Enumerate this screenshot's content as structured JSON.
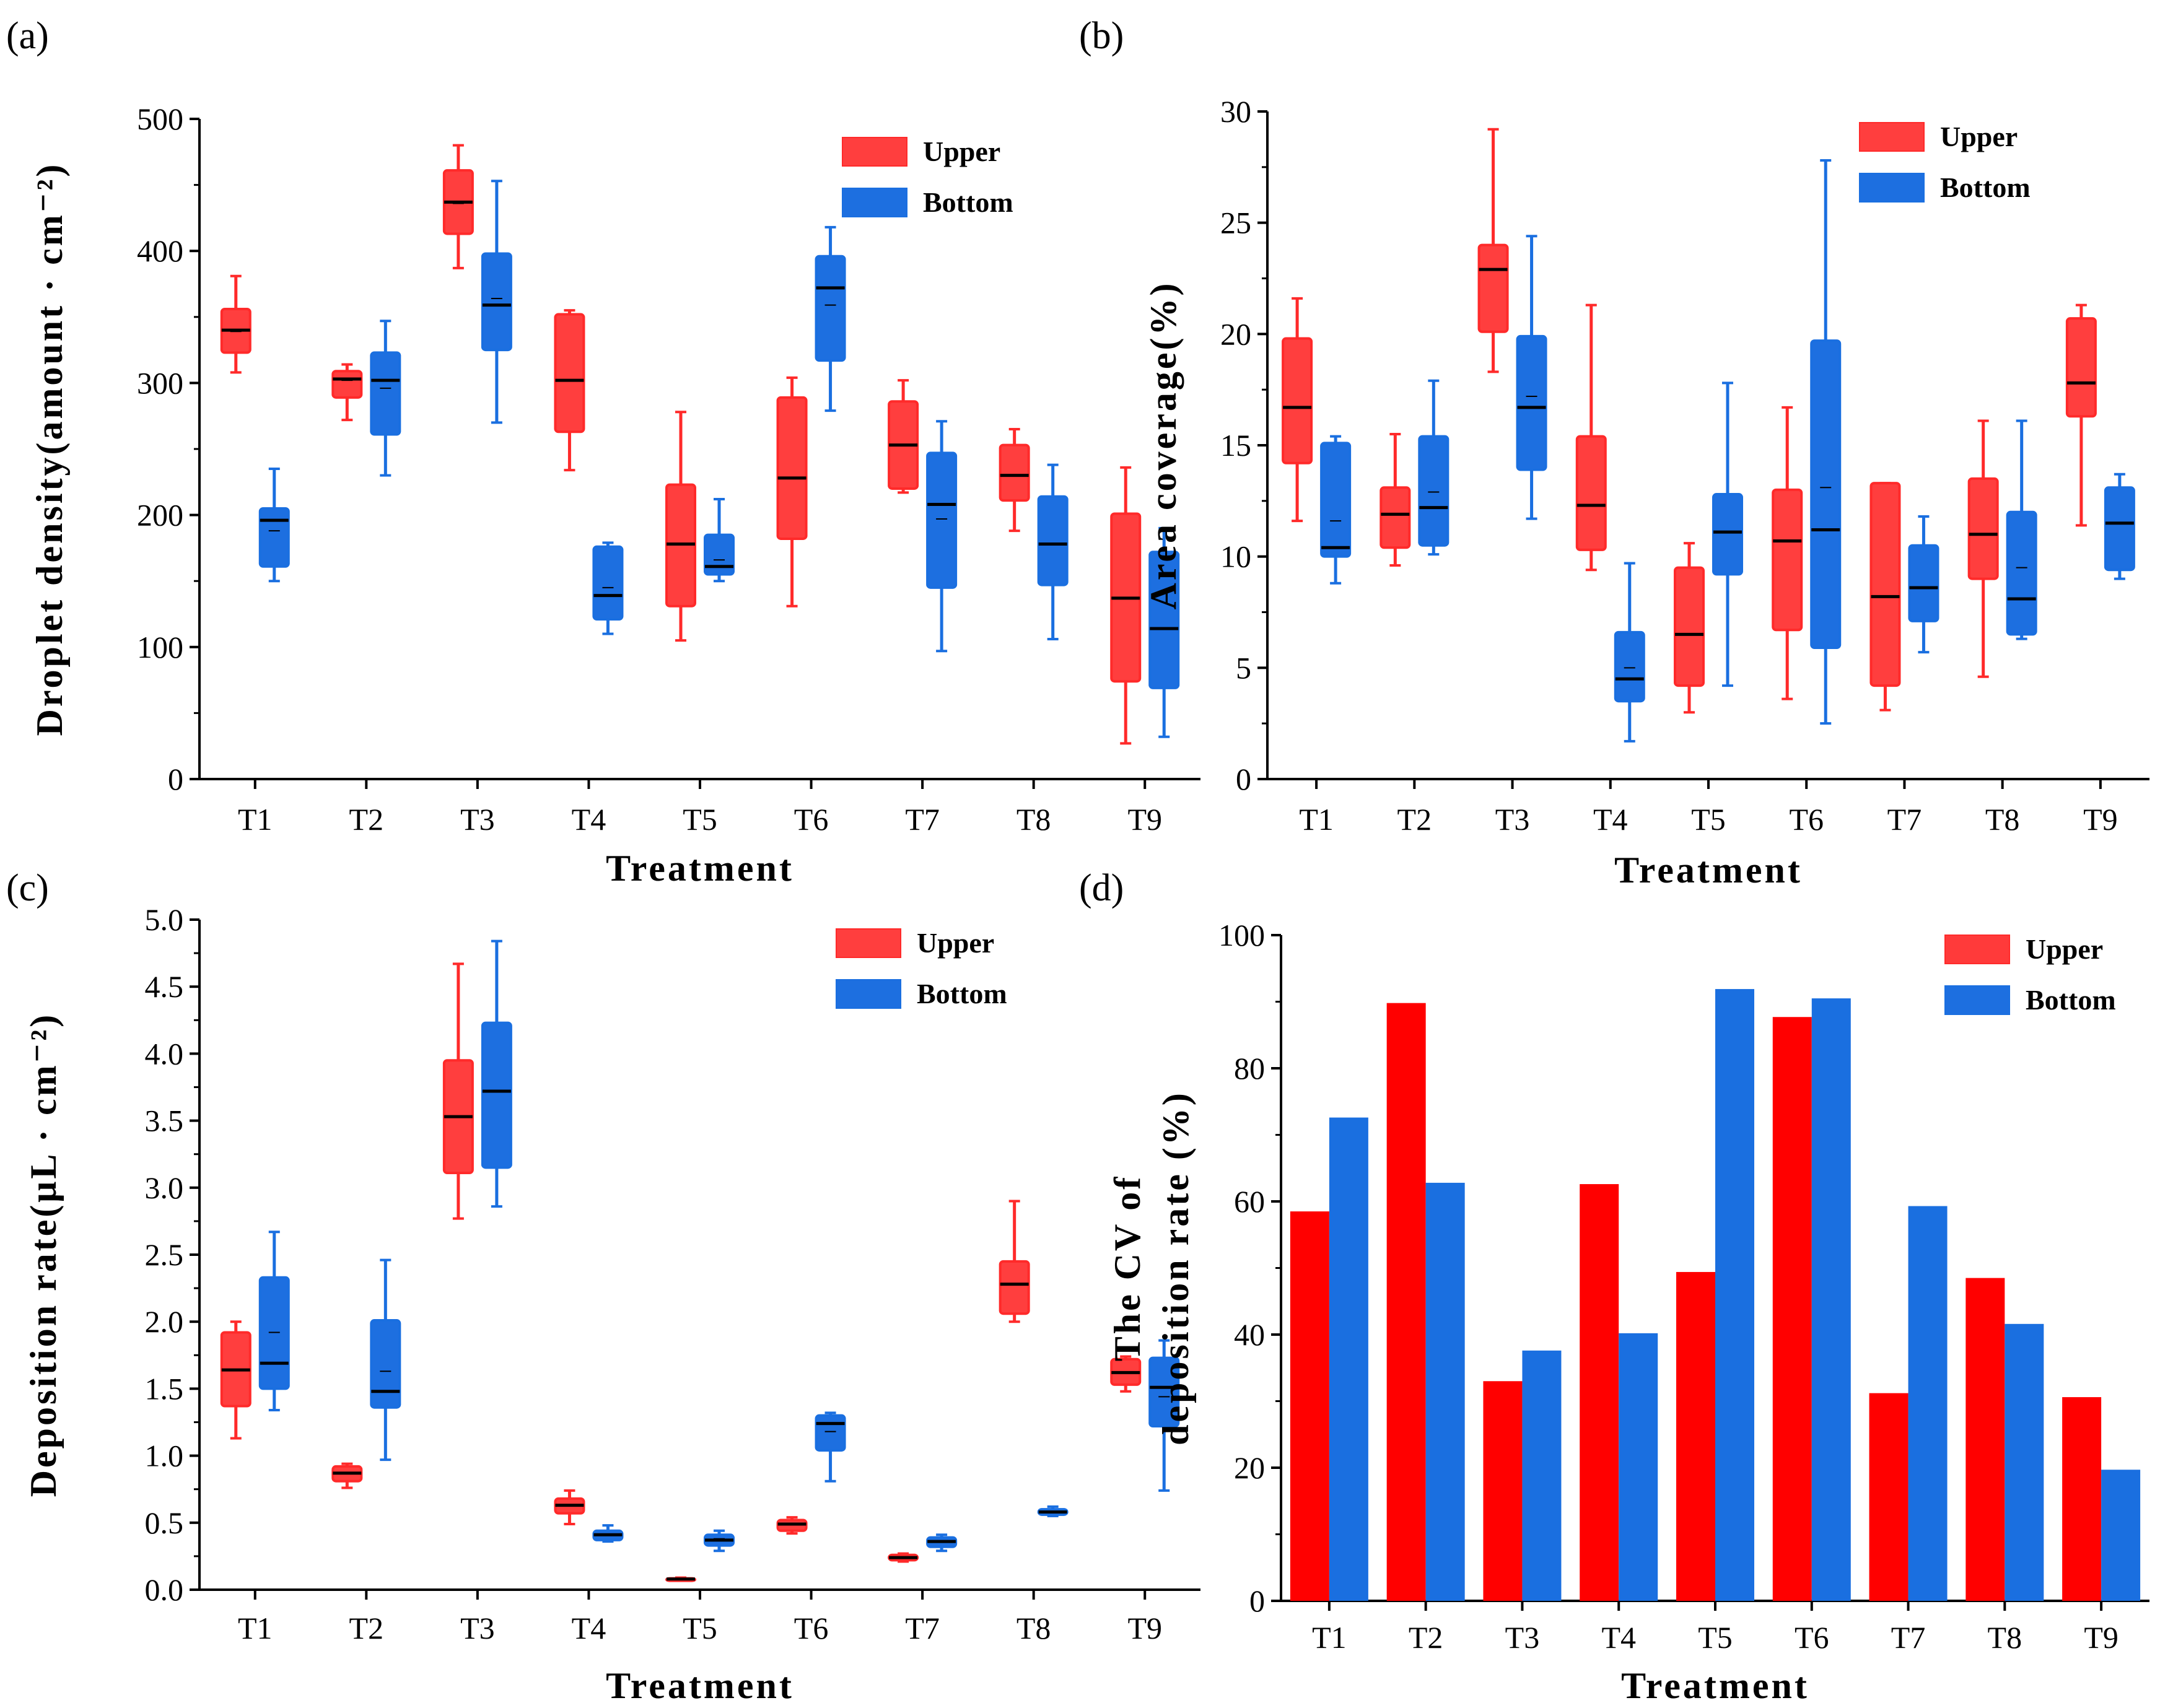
{
  "colors": {
    "upper": "#ff2a2a",
    "upper_fill": "#ff3e3e",
    "bottom": "#1a6fe0",
    "bottom_fill": "#1d6fe0",
    "line": "#000000"
  },
  "legend": {
    "upper": "Upper",
    "bottom": "Bottom"
  },
  "chart_data": [
    {
      "panel": "(a)",
      "type": "box",
      "xlabel": "Treatment",
      "ylabel": "Droplet density(amount · cm⁻²)",
      "ylim": [
        0,
        500
      ],
      "yticks": [
        0,
        100,
        200,
        300,
        400,
        500
      ],
      "ytick_labels": [
        "0",
        "100",
        "200",
        "300",
        "400",
        "500"
      ],
      "categories": [
        "T1",
        "T2",
        "T3",
        "T4",
        "T5",
        "T6",
        "T7",
        "T8",
        "T9"
      ],
      "legend_position": "top-right",
      "series": [
        {
          "name": "Upper",
          "boxes": [
            {
              "min": 308,
              "q1": 323,
              "median": 340,
              "mean": 339,
              "q3": 356,
              "max": 381
            },
            {
              "min": 272,
              "q1": 289,
              "median": 303,
              "mean": 302,
              "q3": 309,
              "max": 314
            },
            {
              "min": 387,
              "q1": 413,
              "median": 437,
              "mean": 436,
              "q3": 461,
              "max": 480
            },
            {
              "min": 234,
              "q1": 263,
              "median": 302,
              "mean": 302,
              "q3": 352,
              "max": 355
            },
            {
              "min": 105,
              "q1": 131,
              "median": 178,
              "mean": 178,
              "q3": 223,
              "max": 278
            },
            {
              "min": 131,
              "q1": 182,
              "median": 228,
              "mean": 228,
              "q3": 289,
              "max": 304
            },
            {
              "min": 217,
              "q1": 220,
              "median": 253,
              "mean": 253,
              "q3": 286,
              "max": 302
            },
            {
              "min": 188,
              "q1": 211,
              "median": 230,
              "mean": 230,
              "q3": 253,
              "max": 265
            },
            {
              "min": 27,
              "q1": 74,
              "median": 137,
              "mean": 137,
              "q3": 201,
              "max": 236
            }
          ]
        },
        {
          "name": "Bottom",
          "boxes": [
            {
              "min": 150,
              "q1": 161,
              "median": 196,
              "mean": 188,
              "q3": 205,
              "max": 235
            },
            {
              "min": 230,
              "q1": 261,
              "median": 302,
              "mean": 296,
              "q3": 323,
              "max": 347
            },
            {
              "min": 270,
              "q1": 325,
              "median": 359,
              "mean": 364,
              "q3": 398,
              "max": 453
            },
            {
              "min": 110,
              "q1": 121,
              "median": 139,
              "mean": 145,
              "q3": 176,
              "max": 179
            },
            {
              "min": 150,
              "q1": 155,
              "median": 161,
              "mean": 166,
              "q3": 185,
              "max": 212
            },
            {
              "min": 279,
              "q1": 317,
              "median": 372,
              "mean": 359,
              "q3": 396,
              "max": 418
            },
            {
              "min": 97,
              "q1": 145,
              "median": 208,
              "mean": 197,
              "q3": 247,
              "max": 271
            },
            {
              "min": 106,
              "q1": 147,
              "median": 178,
              "mean": 178,
              "q3": 214,
              "max": 238
            },
            {
              "min": 32,
              "q1": 69,
              "median": 114,
              "mean": 114,
              "q3": 172,
              "max": 190
            }
          ]
        }
      ]
    },
    {
      "panel": "(b)",
      "type": "box",
      "xlabel": "Treatment",
      "ylabel": "Area coverage(%)",
      "ylim": [
        0,
        30
      ],
      "yticks": [
        0,
        5,
        10,
        15,
        20,
        25,
        30
      ],
      "ytick_labels": [
        "0",
        "5",
        "10",
        "15",
        "20",
        "25",
        "30"
      ],
      "categories": [
        "T1",
        "T2",
        "T3",
        "T4",
        "T5",
        "T6",
        "T7",
        "T8",
        "T9"
      ],
      "legend_position": "top-right",
      "series": [
        {
          "name": "Upper",
          "boxes": [
            {
              "min": 11.6,
              "q1": 14.2,
              "median": 16.7,
              "mean": 16.7,
              "q3": 19.8,
              "max": 21.6
            },
            {
              "min": 9.6,
              "q1": 10.4,
              "median": 11.9,
              "mean": 11.9,
              "q3": 13.1,
              "max": 15.5
            },
            {
              "min": 18.3,
              "q1": 20.1,
              "median": 22.9,
              "mean": 22.9,
              "q3": 24.0,
              "max": 29.2
            },
            {
              "min": 9.4,
              "q1": 10.3,
              "median": 12.3,
              "mean": 12.3,
              "q3": 15.4,
              "max": 21.3
            },
            {
              "min": 3.0,
              "q1": 4.2,
              "median": 6.5,
              "mean": 6.5,
              "q3": 9.5,
              "max": 10.6
            },
            {
              "min": 3.6,
              "q1": 6.7,
              "median": 10.7,
              "mean": 10.7,
              "q3": 13.0,
              "max": 16.7
            },
            {
              "min": 3.1,
              "q1": 4.2,
              "median": 8.2,
              "mean": 8.2,
              "q3": 13.3,
              "max": 13.3
            },
            {
              "min": 4.6,
              "q1": 9.0,
              "median": 11.0,
              "mean": 11.0,
              "q3": 13.5,
              "max": 16.1
            },
            {
              "min": 11.4,
              "q1": 16.3,
              "median": 17.8,
              "mean": 17.8,
              "q3": 20.7,
              "max": 21.3
            }
          ]
        },
        {
          "name": "Bottom",
          "boxes": [
            {
              "min": 8.8,
              "q1": 10.0,
              "median": 10.4,
              "mean": 11.6,
              "q3": 15.1,
              "max": 15.4
            },
            {
              "min": 10.1,
              "q1": 10.5,
              "median": 12.2,
              "mean": 12.9,
              "q3": 15.4,
              "max": 17.9
            },
            {
              "min": 11.7,
              "q1": 13.9,
              "median": 16.7,
              "mean": 17.2,
              "q3": 19.9,
              "max": 24.4
            },
            {
              "min": 1.7,
              "q1": 3.5,
              "median": 4.5,
              "mean": 5.0,
              "q3": 6.6,
              "max": 9.7
            },
            {
              "min": 4.2,
              "q1": 9.2,
              "median": 11.1,
              "mean": 11.1,
              "q3": 12.8,
              "max": 17.8
            },
            {
              "min": 2.5,
              "q1": 5.9,
              "median": 11.2,
              "mean": 13.1,
              "q3": 19.7,
              "max": 27.8
            },
            {
              "min": 5.7,
              "q1": 7.1,
              "median": 8.6,
              "mean": 8.6,
              "q3": 10.5,
              "max": 11.8
            },
            {
              "min": 6.3,
              "q1": 6.5,
              "median": 8.1,
              "mean": 9.5,
              "q3": 12.0,
              "max": 16.1
            },
            {
              "min": 9.0,
              "q1": 9.4,
              "median": 11.5,
              "mean": 11.5,
              "q3": 13.1,
              "max": 13.7
            }
          ]
        }
      ]
    },
    {
      "panel": "(c)",
      "type": "box",
      "xlabel": "Treatment",
      "ylabel": "Deposition rate(μL · cm⁻²)",
      "ylim": [
        0,
        5
      ],
      "yticks": [
        0,
        0.5,
        1,
        1.5,
        2,
        2.5,
        3,
        3.5,
        4,
        4.5,
        5
      ],
      "ytick_labels": [
        "0.0",
        "0.5",
        "1.0",
        "1.5",
        "2.0",
        "2.5",
        "3.0",
        "3.5",
        "4.0",
        "4.5",
        "5.0"
      ],
      "categories": [
        "T1",
        "T2",
        "T3",
        "T4",
        "T5",
        "T6",
        "T7",
        "T8",
        "T9"
      ],
      "legend_position": "top-right",
      "series": [
        {
          "name": "Upper",
          "boxes": [
            {
              "min": 1.13,
              "q1": 1.37,
              "median": 1.64,
              "mean": 1.64,
              "q3": 1.92,
              "max": 2.0
            },
            {
              "min": 0.76,
              "q1": 0.81,
              "median": 0.87,
              "mean": 0.87,
              "q3": 0.92,
              "max": 0.94
            },
            {
              "min": 2.77,
              "q1": 3.11,
              "median": 3.53,
              "mean": 3.53,
              "q3": 3.95,
              "max": 4.67
            },
            {
              "min": 0.49,
              "q1": 0.57,
              "median": 0.63,
              "mean": 0.63,
              "q3": 0.68,
              "max": 0.74
            },
            {
              "min": 0.07,
              "q1": 0.075,
              "median": 0.08,
              "mean": 0.08,
              "q3": 0.085,
              "max": 0.09
            },
            {
              "min": 0.42,
              "q1": 0.44,
              "median": 0.49,
              "mean": 0.49,
              "q3": 0.52,
              "max": 0.54
            },
            {
              "min": 0.21,
              "q1": 0.22,
              "median": 0.24,
              "mean": 0.24,
              "q3": 0.26,
              "max": 0.27
            },
            {
              "min": 2.0,
              "q1": 2.06,
              "median": 2.28,
              "mean": 2.28,
              "q3": 2.45,
              "max": 2.9
            },
            {
              "min": 1.48,
              "q1": 1.53,
              "median": 1.62,
              "mean": 1.62,
              "q3": 1.72,
              "max": 1.74
            }
          ]
        },
        {
          "name": "Bottom",
          "boxes": [
            {
              "min": 1.34,
              "q1": 1.5,
              "median": 1.69,
              "mean": 1.92,
              "q3": 2.33,
              "max": 2.67
            },
            {
              "min": 0.97,
              "q1": 1.36,
              "median": 1.48,
              "mean": 1.63,
              "q3": 2.01,
              "max": 2.46
            },
            {
              "min": 2.86,
              "q1": 3.15,
              "median": 3.72,
              "mean": 3.72,
              "q3": 4.23,
              "max": 4.84
            },
            {
              "min": 0.36,
              "q1": 0.37,
              "median": 0.41,
              "mean": 0.41,
              "q3": 0.44,
              "max": 0.48
            },
            {
              "min": 0.29,
              "q1": 0.33,
              "median": 0.37,
              "mean": 0.38,
              "q3": 0.41,
              "max": 0.44
            },
            {
              "min": 0.81,
              "q1": 1.04,
              "median": 1.24,
              "mean": 1.18,
              "q3": 1.3,
              "max": 1.32
            },
            {
              "min": 0.29,
              "q1": 0.32,
              "median": 0.36,
              "mean": 0.36,
              "q3": 0.39,
              "max": 0.41
            },
            {
              "min": 0.55,
              "q1": 0.56,
              "median": 0.58,
              "mean": 0.58,
              "q3": 0.6,
              "max": 0.62
            },
            {
              "min": 0.74,
              "q1": 1.22,
              "median": 1.51,
              "mean": 1.44,
              "q3": 1.73,
              "max": 1.86
            }
          ]
        }
      ]
    },
    {
      "panel": "(d)",
      "type": "bar",
      "xlabel": "Treatment",
      "ylabel_lines": [
        "The CV of",
        "deposition rate (%)"
      ],
      "ylim": [
        0,
        100
      ],
      "yticks": [
        0,
        20,
        40,
        60,
        80,
        100
      ],
      "ytick_labels": [
        "0",
        "20",
        "40",
        "60",
        "80",
        "100"
      ],
      "categories": [
        "T1",
        "T2",
        "T3",
        "T4",
        "T5",
        "T6",
        "T7",
        "T8",
        "T9"
      ],
      "legend_position": "top-right",
      "series": [
        {
          "name": "Upper",
          "values": [
            58.5,
            89.8,
            33.0,
            62.6,
            49.4,
            87.7,
            31.2,
            48.5,
            30.6
          ]
        },
        {
          "name": "Bottom",
          "values": [
            72.6,
            62.8,
            37.6,
            40.2,
            91.9,
            90.5,
            59.3,
            41.6,
            19.7
          ]
        }
      ]
    }
  ]
}
